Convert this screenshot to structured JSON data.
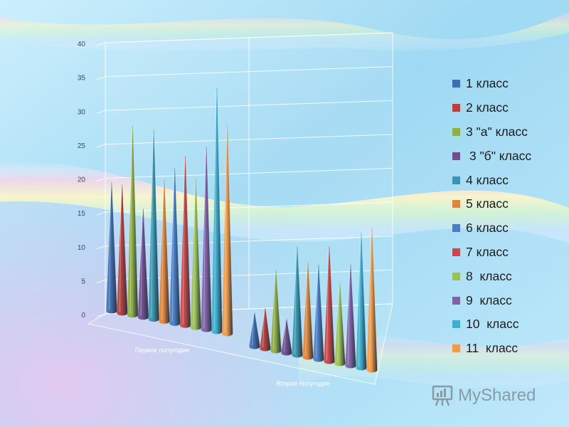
{
  "colors": {
    "series": [
      "#3F6EAE",
      "#B5403E",
      "#8FAE44",
      "#70508F",
      "#3996AE",
      "#E0853A",
      "#4A7DC3",
      "#C94846",
      "#9BC155",
      "#8063A6",
      "#3FAED0",
      "#F29B47"
    ]
  },
  "legend": {
    "items": [
      "1 класс",
      "2 класс",
      "3 \"а\" класс",
      " 3 \"б\" класс",
      "4 класс",
      "5 класс",
      "6 класс",
      "7 класс",
      "8  класс",
      "9  класс",
      "10  класс",
      "11  класс"
    ]
  },
  "logo": {
    "icon": "presentation-icon",
    "text": "MyShared"
  },
  "chart_data": {
    "type": "bar",
    "style": "3d-cone",
    "categories": [
      "Первое полугодие",
      "Второе полугодие"
    ],
    "ylim": [
      0,
      40
    ],
    "yticks": [
      0,
      5,
      10,
      15,
      20,
      25,
      30,
      35,
      40
    ],
    "grid": true,
    "legend_position": "right",
    "series": [
      {
        "name": "1 класс",
        "values": [
          19,
          5
        ]
      },
      {
        "name": "2 класс",
        "values": [
          19,
          6
        ]
      },
      {
        "name": "3 \"а\" класс",
        "values": [
          28,
          12
        ]
      },
      {
        "name": " 3 \"б\" класс",
        "values": [
          16,
          5
        ]
      },
      {
        "name": "4 класс",
        "values": [
          28,
          16
        ]
      },
      {
        "name": "5 класс",
        "values": [
          21,
          14
        ]
      },
      {
        "name": "6 класс",
        "values": [
          23,
          14
        ]
      },
      {
        "name": "7 класс",
        "values": [
          25,
          17
        ]
      },
      {
        "name": "8  класс",
        "values": [
          22,
          12
        ]
      },
      {
        "name": "9  класс",
        "values": [
          27,
          15
        ]
      },
      {
        "name": "10  класс",
        "values": [
          36,
          20
        ]
      },
      {
        "name": "11  класс",
        "values": [
          31,
          21
        ]
      }
    ]
  }
}
